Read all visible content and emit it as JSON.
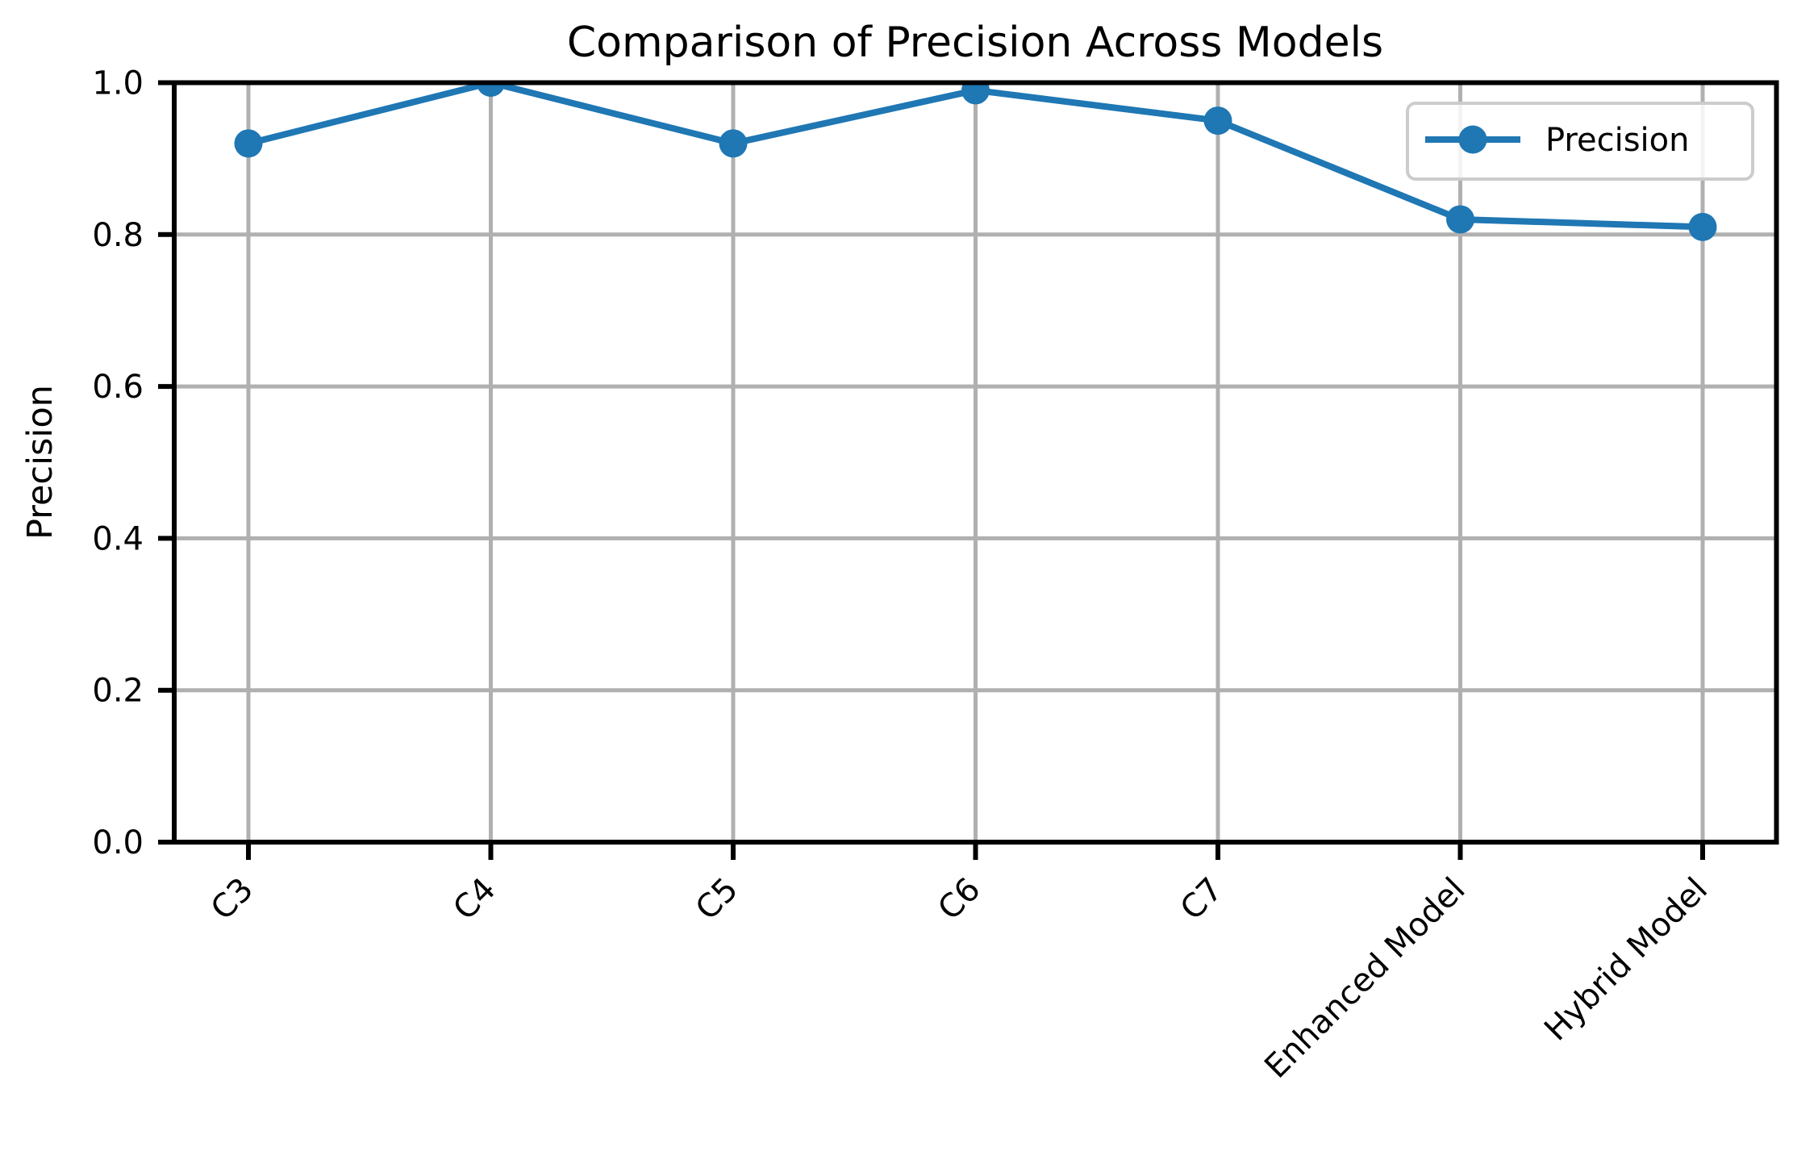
{
  "chart_data": {
    "type": "line",
    "title": "Comparison of Precision Across Models",
    "xlabel": "",
    "ylabel": "Precision",
    "categories": [
      "C3",
      "C4",
      "C5",
      "C6",
      "C7",
      "Enhanced Model",
      "Hybrid Model"
    ],
    "series": [
      {
        "name": "Precision",
        "values": [
          0.92,
          1.0,
          0.92,
          0.99,
          0.95,
          0.82,
          0.81
        ]
      }
    ],
    "ylim": [
      0.0,
      1.0
    ],
    "yticks": [
      0.0,
      0.2,
      0.4,
      0.6,
      0.8,
      1.0
    ],
    "ytick_labels": [
      "0.0",
      "0.2",
      "0.4",
      "0.6",
      "0.8",
      "1.0"
    ],
    "x_tick_rotation": 45,
    "grid": true,
    "legend": {
      "position": "upper right",
      "entries": [
        "Precision"
      ]
    },
    "colors": {
      "line": "#1f77b4",
      "marker": "#1f77b4",
      "grid": "#b0b0b0",
      "spine": "#000000",
      "text": "#000000",
      "legend_border": "#cccccc",
      "legend_fill": "#ffffff",
      "background": "#ffffff"
    }
  }
}
